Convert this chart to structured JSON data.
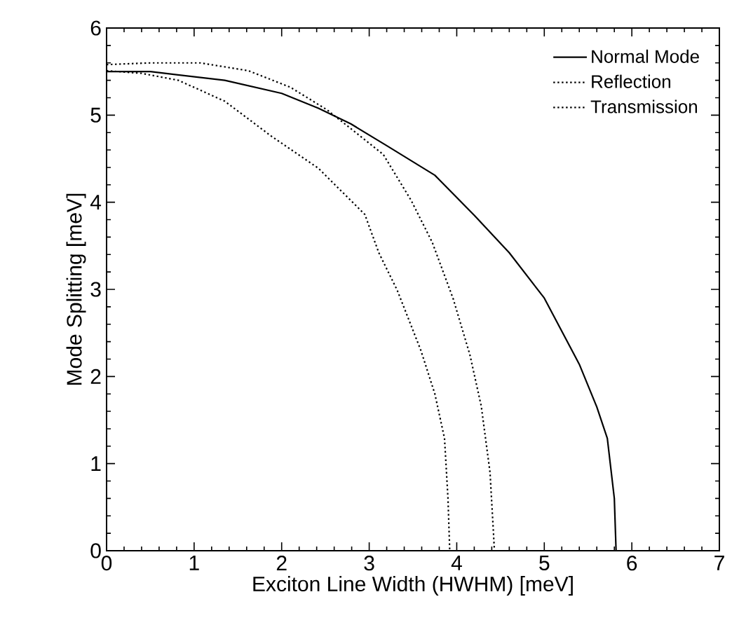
{
  "chart_data": {
    "type": "line",
    "xlabel": "Exciton Line Width (HWHM) [meV]",
    "ylabel": "Mode Splitting [meV]",
    "xlim": [
      0,
      7
    ],
    "ylim": [
      0,
      6
    ],
    "xticks": [
      0,
      1,
      2,
      3,
      4,
      5,
      6,
      7
    ],
    "yticks": [
      0,
      1,
      2,
      3,
      4,
      5,
      6
    ],
    "legend": "top right",
    "grid": false,
    "series": [
      {
        "name": "Normal Mode",
        "color": "#000000",
        "line_style": "solid",
        "x": [
          0,
          0.5,
          1.35,
          2.0,
          2.42,
          2.79,
          3.2,
          3.75,
          4.2,
          4.6,
          5.0,
          5.4,
          5.6,
          5.72,
          5.8,
          5.82
        ],
        "values": [
          5.5,
          5.5,
          5.4,
          5.25,
          5.08,
          4.9,
          4.65,
          4.31,
          3.85,
          3.42,
          2.9,
          2.14,
          1.65,
          1.29,
          0.6,
          0
        ]
      },
      {
        "name": "Reflection",
        "color": "#000000",
        "line_style": "dotted",
        "x": [
          0,
          0.4,
          0.82,
          1.35,
          1.88,
          2.42,
          2.95,
          3.11,
          3.32,
          3.59,
          3.75,
          3.86,
          3.9,
          3.92
        ],
        "values": [
          5.51,
          5.48,
          5.4,
          5.16,
          4.76,
          4.39,
          3.86,
          3.42,
          2.99,
          2.3,
          1.8,
          1.29,
          0.6,
          0
        ]
      },
      {
        "name": "Transmission",
        "color": "#000000",
        "line_style": "dotted",
        "x": [
          0,
          0.5,
          1.07,
          1.62,
          2.1,
          2.52,
          3.16,
          3.48,
          3.72,
          3.96,
          4.15,
          4.28,
          4.38,
          4.42,
          4.43
        ],
        "values": [
          5.58,
          5.6,
          5.6,
          5.51,
          5.32,
          5.06,
          4.55,
          4.02,
          3.54,
          2.89,
          2.25,
          1.66,
          0.9,
          0.2,
          0
        ]
      }
    ]
  }
}
